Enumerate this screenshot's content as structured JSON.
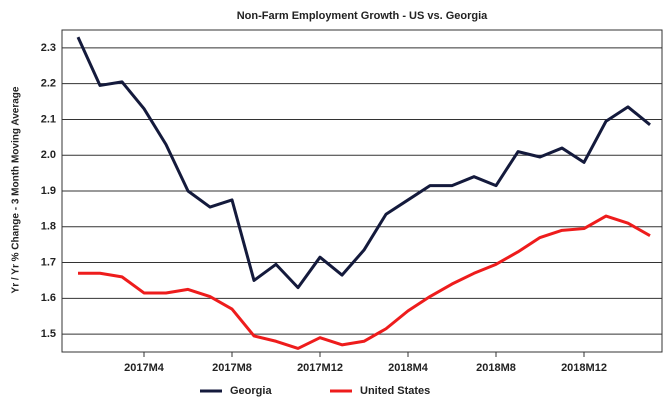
{
  "chart_data": {
    "type": "line",
    "title": "Non-Farm Employment Growth - US vs. Georgia",
    "y_label": "Yr / Yr % Change - 3 Month Moving Average",
    "categories": [
      null,
      null,
      null,
      "2017M4",
      null,
      null,
      null,
      "2017M8",
      null,
      null,
      null,
      "2017M12",
      null,
      null,
      null,
      "2018M4",
      null,
      null,
      null,
      "2018M8",
      null,
      null,
      null,
      "2018M12",
      null,
      null,
      null
    ],
    "series": [
      {
        "name": "Georgia",
        "color": "#141a3c",
        "values": [
          2.33,
          2.195,
          2.205,
          2.13,
          2.03,
          1.9,
          1.855,
          1.875,
          1.65,
          1.695,
          1.63,
          1.715,
          1.665,
          1.735,
          1.835,
          1.875,
          1.915,
          1.915,
          1.94,
          1.915,
          2.01,
          1.995,
          2.02,
          1.98,
          2.095,
          2.135,
          2.085
        ]
      },
      {
        "name": "United States",
        "color": "#ee1c1c",
        "values": [
          1.67,
          1.67,
          1.66,
          1.615,
          1.615,
          1.625,
          1.605,
          1.57,
          1.495,
          1.48,
          1.46,
          1.49,
          1.47,
          1.48,
          1.515,
          1.565,
          1.605,
          1.64,
          1.67,
          1.695,
          1.73,
          1.77,
          1.79,
          1.795,
          1.83,
          1.81,
          1.775
        ]
      }
    ],
    "ylim": [
      1.45,
      2.35
    ],
    "yticks": [
      1.5,
      1.6,
      1.7,
      1.8,
      1.9,
      {
        "value": 2,
        "label": "2.0"
      },
      2.1,
      2.2,
      2.3
    ],
    "grid": true,
    "legend": "bottom"
  }
}
